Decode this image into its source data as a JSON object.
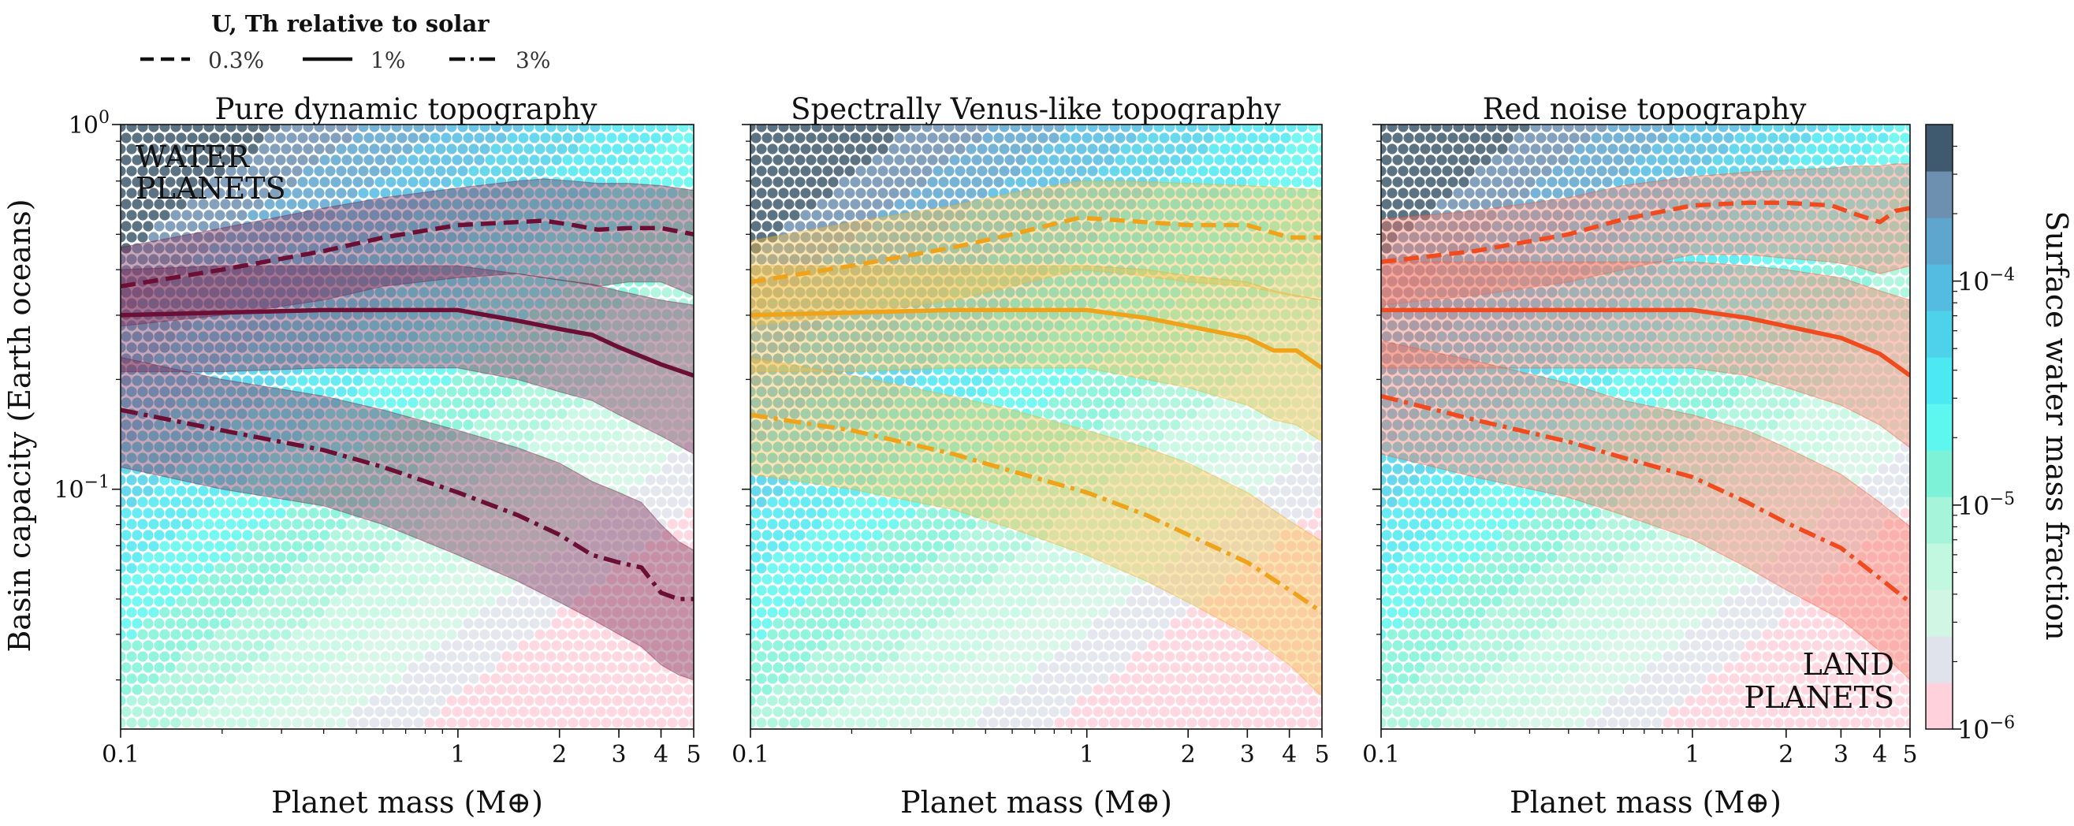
{
  "chart_data": {
    "type": "line",
    "legend": {
      "title": "U, Th relative to solar",
      "entries": [
        {
          "label": "0.3%",
          "style": "dashed"
        },
        {
          "label": "1%",
          "style": "solid"
        },
        {
          "label": "3%",
          "style": "dashdot"
        }
      ]
    },
    "xlabel": "Planet mass (M⊕)",
    "ylabel": "Basin capacity (Earth oceans)",
    "xscale": "log",
    "yscale": "log",
    "xlim": [
      0.1,
      5
    ],
    "ylim": [
      0.022,
      1.0
    ],
    "xticks": [
      {
        "v": 0.1,
        "label": "0.1"
      },
      {
        "v": 1,
        "label": "1"
      },
      {
        "v": 2,
        "label": "2"
      },
      {
        "v": 3,
        "label": "3"
      },
      {
        "v": 4,
        "label": "4"
      },
      {
        "v": 5,
        "label": "5"
      }
    ],
    "yticks": [
      {
        "v": 1.0,
        "label": "10^0"
      },
      {
        "v": 0.1,
        "label": "10^-1"
      }
    ],
    "colorbar": {
      "label": "Surface water mass fraction",
      "scale": "log",
      "range": [
        1e-06,
        0.0005
      ],
      "ticks": [
        {
          "v": 1e-06,
          "label": "10^-6"
        },
        {
          "v": 1e-05,
          "label": "10^-5"
        },
        {
          "v": 0.0001,
          "label": "10^-4"
        }
      ],
      "colors": [
        "#ffd1dc",
        "#e1e3ec",
        "#d2f6e4",
        "#c2f8e0",
        "#a6f5da",
        "#7ef2d6",
        "#5ef7f0",
        "#4de9f2",
        "#4dd2ea",
        "#54bce0",
        "#5ea6cd",
        "#6d8fb0",
        "#3f5a6e"
      ]
    },
    "annotations": [
      {
        "panel": 0,
        "text": [
          "WATER",
          "PLANETS"
        ]
      },
      {
        "panel": 2,
        "text": [
          "LAND",
          "PLANETS"
        ]
      }
    ],
    "panels": [
      {
        "title": "Pure dynamic topography",
        "color": "#6b0f35",
        "band_color": "#7a2a55",
        "series": [
          {
            "name": "0.3%",
            "style": "dashed",
            "x": [
              0.1,
              0.2,
              0.4,
              0.6,
              1.0,
              1.5,
              1.8,
              2.2,
              2.6,
              3.2,
              4.0,
              5.0
            ],
            "y": [
              0.36,
              0.4,
              0.45,
              0.49,
              0.53,
              0.54,
              0.545,
              0.53,
              0.515,
              0.52,
              0.52,
              0.5
            ],
            "lo": [
              0.28,
              0.3,
              0.33,
              0.36,
              0.38,
              0.39,
              0.38,
              0.37,
              0.36,
              0.37,
              0.37,
              0.34
            ],
            "hi": [
              0.46,
              0.52,
              0.59,
              0.63,
              0.67,
              0.7,
              0.71,
              0.7,
              0.69,
              0.69,
              0.68,
              0.66
            ]
          },
          {
            "name": "1%",
            "style": "solid",
            "x": [
              0.1,
              0.2,
              0.4,
              0.6,
              1.0,
              1.5,
              2.0,
              2.5,
              3.0,
              4.0,
              5.0
            ],
            "y": [
              0.3,
              0.305,
              0.31,
              0.31,
              0.31,
              0.29,
              0.275,
              0.265,
              0.245,
              0.22,
              0.205
            ],
            "lo": [
              0.21,
              0.21,
              0.215,
              0.215,
              0.215,
              0.2,
              0.185,
              0.175,
              0.16,
              0.14,
              0.125
            ],
            "hi": [
              0.4,
              0.41,
              0.41,
              0.41,
              0.41,
              0.39,
              0.375,
              0.365,
              0.35,
              0.33,
              0.32
            ]
          },
          {
            "name": "3%",
            "style": "dashdot",
            "x": [
              0.1,
              0.2,
              0.4,
              0.6,
              1.0,
              1.5,
              2.0,
              2.5,
              3.0,
              3.5,
              4.0,
              4.5,
              5.0
            ],
            "y": [
              0.165,
              0.145,
              0.128,
              0.115,
              0.098,
              0.085,
              0.075,
              0.066,
              0.063,
              0.061,
              0.052,
              0.05,
              0.05
            ],
            "lo": [
              0.115,
              0.1,
              0.09,
              0.08,
              0.066,
              0.056,
              0.049,
              0.044,
              0.04,
              0.037,
              0.033,
              0.031,
              0.03
            ],
            "hi": [
              0.23,
              0.2,
              0.18,
              0.165,
              0.145,
              0.13,
              0.118,
              0.105,
              0.098,
              0.092,
              0.08,
              0.072,
              0.068
            ]
          }
        ]
      },
      {
        "title": "Spectrally Venus-like topography",
        "color": "#eea31b",
        "band_color": "#f2c048",
        "series": [
          {
            "name": "0.3%",
            "style": "dashed",
            "x": [
              0.1,
              0.2,
              0.4,
              0.6,
              0.95,
              1.3,
              2.0,
              3.0,
              4.0,
              5.0
            ],
            "y": [
              0.37,
              0.41,
              0.46,
              0.5,
              0.555,
              0.545,
              0.53,
              0.53,
              0.49,
              0.49
            ],
            "lo": [
              0.28,
              0.3,
              0.33,
              0.36,
              0.4,
              0.39,
              0.37,
              0.36,
              0.34,
              0.33
            ],
            "hi": [
              0.48,
              0.54,
              0.6,
              0.65,
              0.7,
              0.7,
              0.69,
              0.68,
              0.67,
              0.66
            ]
          },
          {
            "name": "1%",
            "style": "solid",
            "x": [
              0.1,
              0.2,
              0.4,
              0.6,
              1.0,
              1.5,
              2.0,
              3.0,
              3.6,
              4.2,
              5.0
            ],
            "y": [
              0.3,
              0.305,
              0.31,
              0.31,
              0.31,
              0.295,
              0.28,
              0.26,
              0.24,
              0.24,
              0.215
            ],
            "lo": [
              0.21,
              0.21,
              0.215,
              0.215,
              0.215,
              0.2,
              0.19,
              0.17,
              0.155,
              0.15,
              0.135
            ],
            "hi": [
              0.41,
              0.41,
              0.41,
              0.41,
              0.41,
              0.4,
              0.385,
              0.37,
              0.35,
              0.34,
              0.33
            ]
          },
          {
            "name": "3%",
            "style": "dashdot",
            "x": [
              0.1,
              0.2,
              0.4,
              0.6,
              1.0,
              1.5,
              2.0,
              3.0,
              4.0,
              5.0
            ],
            "y": [
              0.16,
              0.145,
              0.125,
              0.112,
              0.098,
              0.085,
              0.075,
              0.063,
              0.053,
              0.046
            ],
            "lo": [
              0.11,
              0.1,
              0.088,
              0.078,
              0.066,
              0.056,
              0.049,
              0.04,
              0.033,
              0.027
            ],
            "hi": [
              0.23,
              0.205,
              0.18,
              0.165,
              0.145,
              0.13,
              0.118,
              0.098,
              0.082,
              0.072
            ]
          }
        ]
      },
      {
        "title": "Red noise topography",
        "color": "#f04a1e",
        "band_color": "#f47a66",
        "series": [
          {
            "name": "0.3%",
            "style": "dashed",
            "x": [
              0.1,
              0.2,
              0.4,
              0.6,
              1.0,
              1.5,
              2.0,
              2.8,
              3.3,
              4.0,
              4.5,
              5.0
            ],
            "y": [
              0.42,
              0.45,
              0.5,
              0.55,
              0.6,
              0.61,
              0.61,
              0.6,
              0.57,
              0.54,
              0.58,
              0.59
            ],
            "lo": [
              0.32,
              0.34,
              0.37,
              0.4,
              0.44,
              0.44,
              0.43,
              0.42,
              0.41,
              0.39,
              0.4,
              0.41
            ],
            "hi": [
              0.55,
              0.58,
              0.63,
              0.68,
              0.72,
              0.74,
              0.75,
              0.76,
              0.77,
              0.77,
              0.78,
              0.78
            ]
          },
          {
            "name": "1%",
            "style": "solid",
            "x": [
              0.1,
              0.2,
              0.4,
              0.6,
              1.0,
              1.5,
              2.0,
              3.0,
              4.0,
              5.0
            ],
            "y": [
              0.31,
              0.31,
              0.31,
              0.31,
              0.31,
              0.295,
              0.28,
              0.26,
              0.235,
              0.205
            ],
            "lo": [
              0.215,
              0.215,
              0.215,
              0.215,
              0.215,
              0.205,
              0.19,
              0.17,
              0.15,
              0.13
            ],
            "hi": [
              0.42,
              0.42,
              0.42,
              0.42,
              0.42,
              0.41,
              0.4,
              0.38,
              0.35,
              0.33
            ]
          },
          {
            "name": "3%",
            "style": "dashdot",
            "x": [
              0.1,
              0.2,
              0.4,
              0.6,
              1.0,
              1.5,
              2.0,
              3.0,
              4.0,
              5.0
            ],
            "y": [
              0.18,
              0.155,
              0.135,
              0.122,
              0.108,
              0.092,
              0.081,
              0.069,
              0.057,
              0.049
            ],
            "lo": [
              0.125,
              0.108,
              0.095,
              0.085,
              0.073,
              0.061,
              0.053,
              0.044,
              0.036,
              0.03
            ],
            "hi": [
              0.255,
              0.225,
              0.195,
              0.175,
              0.16,
              0.145,
              0.13,
              0.11,
              0.092,
              0.079
            ]
          }
        ]
      }
    ]
  }
}
